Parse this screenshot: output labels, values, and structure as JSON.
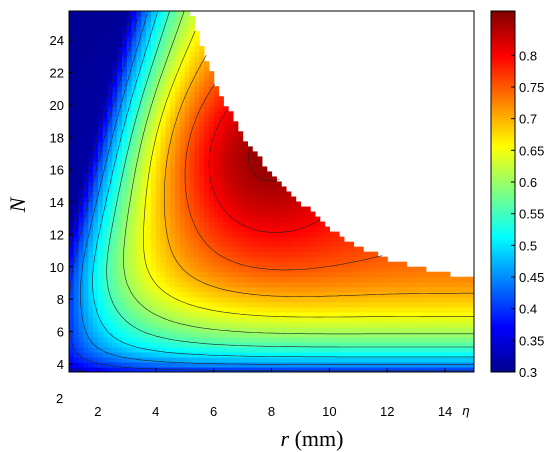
{
  "chart_data": {
    "type": "heatmap",
    "title": "",
    "xlabel_var": "r",
    "xlabel_unit": " (mm)",
    "ylabel": "N",
    "colorbar_extra_label": "η",
    "xlim": [
      1,
      15
    ],
    "ylim": [
      3.5,
      25.8
    ],
    "x_ticks": [
      "2",
      "4",
      "6",
      "8",
      "10",
      "12",
      "14"
    ],
    "y_ticks": [
      "4",
      "6",
      "8",
      "10",
      "12",
      "14",
      "16",
      "18",
      "20",
      "22",
      "24"
    ],
    "corner_label": "2",
    "colorbar": {
      "range": [
        0.3,
        0.87
      ],
      "ticks": [
        "0.3",
        "0.35",
        "0.4",
        "0.45",
        "0.5",
        "0.55",
        "0.6",
        "0.65",
        "0.7",
        "0.75",
        "0.8"
      ],
      "colormap": "jet"
    },
    "contour_levels": [
      0.3,
      0.35,
      0.4,
      0.45,
      0.5,
      0.55,
      0.6,
      0.65,
      0.7,
      0.75,
      0.8,
      0.85
    ],
    "valid_region_boundary": {
      "r": [
        5.2,
        6.0,
        7.0,
        8.0,
        9.0,
        10.0,
        11.0,
        12.0,
        13.0,
        14.0,
        15.0
      ],
      "N_max": [
        25.8,
        21.5,
        18.0,
        15.8,
        14.0,
        12.3,
        11.2,
        10.5,
        10.0,
        9.6,
        9.2
      ]
    },
    "efficiency_trend": "η rises with r and N; maximum ≈0.85 near r 6–10 mm, N 13–19"
  }
}
